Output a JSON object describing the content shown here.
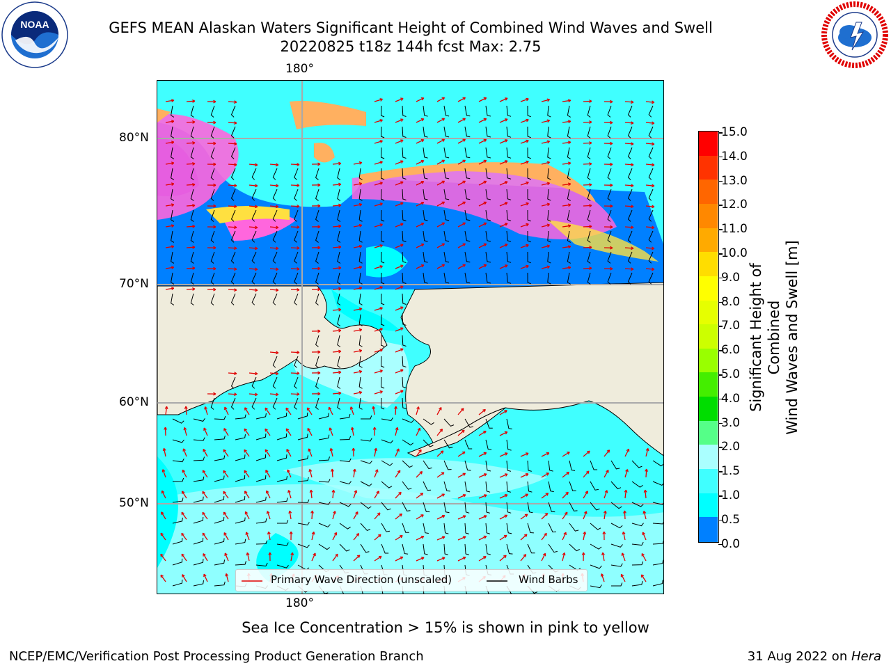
{
  "header": {
    "title_line1": "GEFS MEAN Alaskan Waters Significant Height of Combined Wind Waves and Swell",
    "title_line2": "20220825 t18z 144h fcst   Max: 2.75",
    "noaa_logo_text": "NOAA",
    "noaa_ring_text": "NATIONAL OCEANIC AND ATMOSPHERIC ADMINISTRATION · U.S. DEPARTMENT OF COMMERCE",
    "nws_ring_text": "NATIONAL WEATHER SERVICE"
  },
  "map": {
    "lon_label_top": "180°",
    "lon_label_bottom": "180°",
    "lat_labels": [
      "80°N",
      "70°N",
      "60°N",
      "50°N"
    ],
    "colors": {
      "land": "#efecdc",
      "ocean_0_5": "#0000ff",
      "ocean_1_0": "#0080ff",
      "ocean_1_5": "#00ffff",
      "ocean_2_0": "#40ffff",
      "ocean_3_0": "#aaffff",
      "ice_pink": "#ff66dd",
      "ice_orange": "#ffb060",
      "ice_yellow": "#ffe040",
      "wave_arrow": "#e00000",
      "wind_barb": "#000000"
    }
  },
  "legend": {
    "wave_label": "Primary Wave Direction (unscaled)",
    "wind_label": "Wind Barbs"
  },
  "colorbar": {
    "label_line1": "Significant Height of Combined",
    "label_line2": "Wind Waves and Swell [m]",
    "ticks": [
      "15.0",
      "14.0",
      "13.0",
      "12.0",
      "11.0",
      "10.0",
      "9.0",
      "8.0",
      "7.0",
      "6.0",
      "5.0",
      "4.0",
      "3.0",
      "2.0",
      "1.5",
      "1.0",
      "0.5",
      "0.0"
    ],
    "segment_colors": [
      "#ff0000",
      "#ff3300",
      "#ff6600",
      "#ff8800",
      "#ffaa00",
      "#ffdd00",
      "#ffff00",
      "#e6ff00",
      "#ccff00",
      "#99ff00",
      "#44ee00",
      "#00dd00",
      "#55ff88",
      "#aaffff",
      "#40ffff",
      "#00ffff",
      "#0080ff",
      "#0000ff"
    ]
  },
  "notes": {
    "sea_ice": "Sea Ice Concentration > 15% is shown in pink to yellow"
  },
  "footer": {
    "left": "NCEP/EMC/Verification Post Processing Product Generation Branch",
    "date": "31 Aug 2022 on ",
    "host": "Hera"
  }
}
